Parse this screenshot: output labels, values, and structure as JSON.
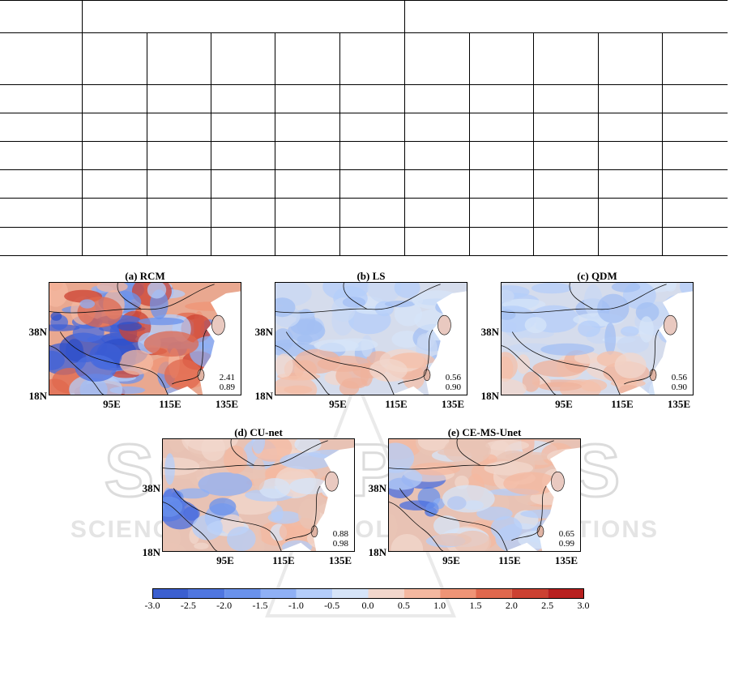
{
  "panels": [
    {
      "id": "a",
      "title": "(a) RCM",
      "stats": [
        "2.41",
        "0.89"
      ],
      "tone": "strong"
    },
    {
      "id": "b",
      "title": "(b) LS",
      "stats": [
        "0.56",
        "0.90"
      ],
      "tone": "weak"
    },
    {
      "id": "c",
      "title": "(c) QDM",
      "stats": [
        "0.56",
        "0.90"
      ],
      "tone": "weak"
    },
    {
      "id": "d",
      "title": "(d) CU-net",
      "stats": [
        "0.88",
        "0.98"
      ],
      "tone": "mid"
    },
    {
      "id": "e",
      "title": "(e) CE-MS-Unet",
      "stats": [
        "0.65",
        "0.99"
      ],
      "tone": "mid"
    }
  ],
  "y_ticks": [
    "38N",
    "18N"
  ],
  "x_ticks": [
    "95E",
    "115E",
    "135E"
  ],
  "colorbar": {
    "ticks": [
      "-3.0",
      "-2.5",
      "-2.0",
      "-1.5",
      "-1.0",
      "-0.5",
      "0.0",
      "0.5",
      "1.0",
      "1.5",
      "2.0",
      "2.5",
      "3.0"
    ],
    "colors": [
      "#3b5fd0",
      "#4f76e0",
      "#6a92ec",
      "#8fb0f5",
      "#b4cdfa",
      "#d6e4f8",
      "#f2d7cc",
      "#f4b8a0",
      "#ef9476",
      "#e0684d",
      "#cc4132",
      "#b8201f"
    ]
  },
  "watermark": {
    "line1": "SCITEPRESS",
    "line2": "SCIENCE AND TECHNOLOGY PUBLICATIONS"
  }
}
